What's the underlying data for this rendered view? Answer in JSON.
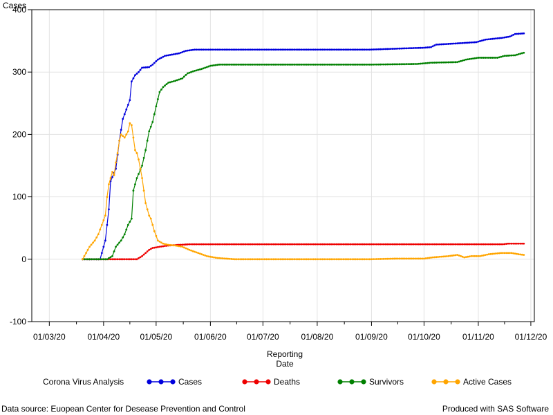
{
  "chart_data": {
    "type": "line",
    "title": "",
    "ylabel": "Cases",
    "xlabel_lines": [
      "Reporting",
      "Date"
    ],
    "ylim": [
      -100,
      400
    ],
    "y_ticks": [
      -100,
      0,
      100,
      200,
      300,
      400
    ],
    "x_ticks": [
      {
        "date": "2020-03-01",
        "label": "01/03/20"
      },
      {
        "date": "2020-04-01",
        "label": "01/04/20"
      },
      {
        "date": "2020-05-01",
        "label": "01/05/20"
      },
      {
        "date": "2020-06-01",
        "label": "01/06/20"
      },
      {
        "date": "2020-07-01",
        "label": "01/07/20"
      },
      {
        "date": "2020-08-01",
        "label": "01/08/20"
      },
      {
        "date": "2020-09-01",
        "label": "01/09/20"
      },
      {
        "date": "2020-10-01",
        "label": "01/10/20"
      },
      {
        "date": "2020-11-01",
        "label": "01/11/20"
      },
      {
        "date": "2020-12-01",
        "label": "01/12/20"
      }
    ],
    "xlim": [
      "2020-02-20",
      "2020-12-03"
    ],
    "grid": true,
    "legend_title": "Corona Virus Analysis",
    "legend_position": "bottom",
    "series": [
      {
        "name": "Cases",
        "color": "#0000dd",
        "points": [
          [
            "2020-03-20",
            0
          ],
          [
            "2020-03-25",
            0
          ],
          [
            "2020-03-30",
            0
          ],
          [
            "2020-04-02",
            30
          ],
          [
            "2020-04-04",
            80
          ],
          [
            "2020-04-05",
            125
          ],
          [
            "2020-04-08",
            145
          ],
          [
            "2020-04-10",
            190
          ],
          [
            "2020-04-12",
            225
          ],
          [
            "2020-04-14",
            240
          ],
          [
            "2020-04-16",
            255
          ],
          [
            "2020-04-17",
            285
          ],
          [
            "2020-04-19",
            295
          ],
          [
            "2020-04-21",
            300
          ],
          [
            "2020-04-23",
            307
          ],
          [
            "2020-04-27",
            308
          ],
          [
            "2020-04-29",
            312
          ],
          [
            "2020-05-02",
            320
          ],
          [
            "2020-05-06",
            326
          ],
          [
            "2020-05-10",
            328
          ],
          [
            "2020-05-14",
            330
          ],
          [
            "2020-05-18",
            334
          ],
          [
            "2020-05-23",
            336
          ],
          [
            "2020-06-30",
            336
          ],
          [
            "2020-08-31",
            336
          ],
          [
            "2020-09-10",
            337
          ],
          [
            "2020-09-20",
            338
          ],
          [
            "2020-10-01",
            339
          ],
          [
            "2020-10-05",
            340
          ],
          [
            "2020-10-08",
            344
          ],
          [
            "2020-10-20",
            346
          ],
          [
            "2020-10-31",
            348
          ],
          [
            "2020-11-05",
            352
          ],
          [
            "2020-11-15",
            355
          ],
          [
            "2020-11-19",
            357
          ],
          [
            "2020-11-22",
            361
          ],
          [
            "2020-11-27",
            362
          ]
        ]
      },
      {
        "name": "Deaths",
        "color": "#ee0000",
        "points": [
          [
            "2020-03-20",
            0
          ],
          [
            "2020-04-20",
            0
          ],
          [
            "2020-04-23",
            5
          ],
          [
            "2020-04-25",
            10
          ],
          [
            "2020-04-27",
            15
          ],
          [
            "2020-04-29",
            18
          ],
          [
            "2020-05-03",
            20
          ],
          [
            "2020-05-08",
            22
          ],
          [
            "2020-05-20",
            24
          ],
          [
            "2020-07-01",
            24
          ],
          [
            "2020-09-01",
            24
          ],
          [
            "2020-11-15",
            24
          ],
          [
            "2020-11-18",
            25
          ],
          [
            "2020-11-27",
            25
          ]
        ]
      },
      {
        "name": "Survivors",
        "color": "#008000",
        "points": [
          [
            "2020-03-20",
            0
          ],
          [
            "2020-04-03",
            0
          ],
          [
            "2020-04-06",
            5
          ],
          [
            "2020-04-08",
            20
          ],
          [
            "2020-04-11",
            30
          ],
          [
            "2020-04-13",
            40
          ],
          [
            "2020-04-15",
            55
          ],
          [
            "2020-04-17",
            65
          ],
          [
            "2020-04-18",
            110
          ],
          [
            "2020-04-20",
            130
          ],
          [
            "2020-04-23",
            150
          ],
          [
            "2020-04-25",
            175
          ],
          [
            "2020-04-27",
            205
          ],
          [
            "2020-04-29",
            220
          ],
          [
            "2020-05-01",
            245
          ],
          [
            "2020-05-03",
            268
          ],
          [
            "2020-05-05",
            276
          ],
          [
            "2020-05-08",
            283
          ],
          [
            "2020-05-12",
            286
          ],
          [
            "2020-05-16",
            290
          ],
          [
            "2020-05-19",
            298
          ],
          [
            "2020-05-23",
            302
          ],
          [
            "2020-05-27",
            305
          ],
          [
            "2020-06-01",
            310
          ],
          [
            "2020-06-06",
            312
          ],
          [
            "2020-07-01",
            312
          ],
          [
            "2020-09-01",
            312
          ],
          [
            "2020-09-27",
            313
          ],
          [
            "2020-10-05",
            315
          ],
          [
            "2020-10-20",
            316
          ],
          [
            "2020-10-25",
            320
          ],
          [
            "2020-11-01",
            323
          ],
          [
            "2020-11-12",
            323
          ],
          [
            "2020-11-16",
            326
          ],
          [
            "2020-11-22",
            327
          ],
          [
            "2020-11-27",
            331
          ]
        ]
      },
      {
        "name": "Active Cases",
        "color": "#ffa500",
        "points": [
          [
            "2020-03-20",
            0
          ],
          [
            "2020-03-22",
            10
          ],
          [
            "2020-03-24",
            20
          ],
          [
            "2020-03-27",
            30
          ],
          [
            "2020-03-29",
            40
          ],
          [
            "2020-03-31",
            55
          ],
          [
            "2020-04-02",
            70
          ],
          [
            "2020-04-03",
            100
          ],
          [
            "2020-04-04",
            120
          ],
          [
            "2020-04-06",
            140
          ],
          [
            "2020-04-07",
            135
          ],
          [
            "2020-04-08",
            155
          ],
          [
            "2020-04-09",
            170
          ],
          [
            "2020-04-10",
            190
          ],
          [
            "2020-04-11",
            200
          ],
          [
            "2020-04-13",
            195
          ],
          [
            "2020-04-14",
            200
          ],
          [
            "2020-04-15",
            205
          ],
          [
            "2020-04-16",
            218
          ],
          [
            "2020-04-17",
            215
          ],
          [
            "2020-04-18",
            195
          ],
          [
            "2020-04-19",
            175
          ],
          [
            "2020-04-20",
            170
          ],
          [
            "2020-04-21",
            160
          ],
          [
            "2020-04-22",
            145
          ],
          [
            "2020-04-23",
            130
          ],
          [
            "2020-04-24",
            110
          ],
          [
            "2020-04-25",
            90
          ],
          [
            "2020-04-26",
            80
          ],
          [
            "2020-04-27",
            70
          ],
          [
            "2020-04-28",
            65
          ],
          [
            "2020-04-30",
            45
          ],
          [
            "2020-05-02",
            30
          ],
          [
            "2020-05-05",
            25
          ],
          [
            "2020-05-08",
            23
          ],
          [
            "2020-05-12",
            22
          ],
          [
            "2020-05-16",
            20
          ],
          [
            "2020-05-20",
            15
          ],
          [
            "2020-05-25",
            10
          ],
          [
            "2020-05-30",
            5
          ],
          [
            "2020-06-05",
            2
          ],
          [
            "2020-06-15",
            0
          ],
          [
            "2020-08-31",
            0
          ],
          [
            "2020-09-15",
            1
          ],
          [
            "2020-10-01",
            1
          ],
          [
            "2020-10-06",
            3
          ],
          [
            "2020-10-15",
            5
          ],
          [
            "2020-10-20",
            7
          ],
          [
            "2020-10-24",
            3
          ],
          [
            "2020-10-28",
            5
          ],
          [
            "2020-11-02",
            5
          ],
          [
            "2020-11-07",
            8
          ],
          [
            "2020-11-14",
            10
          ],
          [
            "2020-11-20",
            10
          ],
          [
            "2020-11-24",
            8
          ],
          [
            "2020-11-27",
            7
          ]
        ]
      }
    ]
  },
  "footer": {
    "source": "Data source: Euopean Center for Desease Prevention and Control",
    "credit": "Produced with SAS Software"
  }
}
